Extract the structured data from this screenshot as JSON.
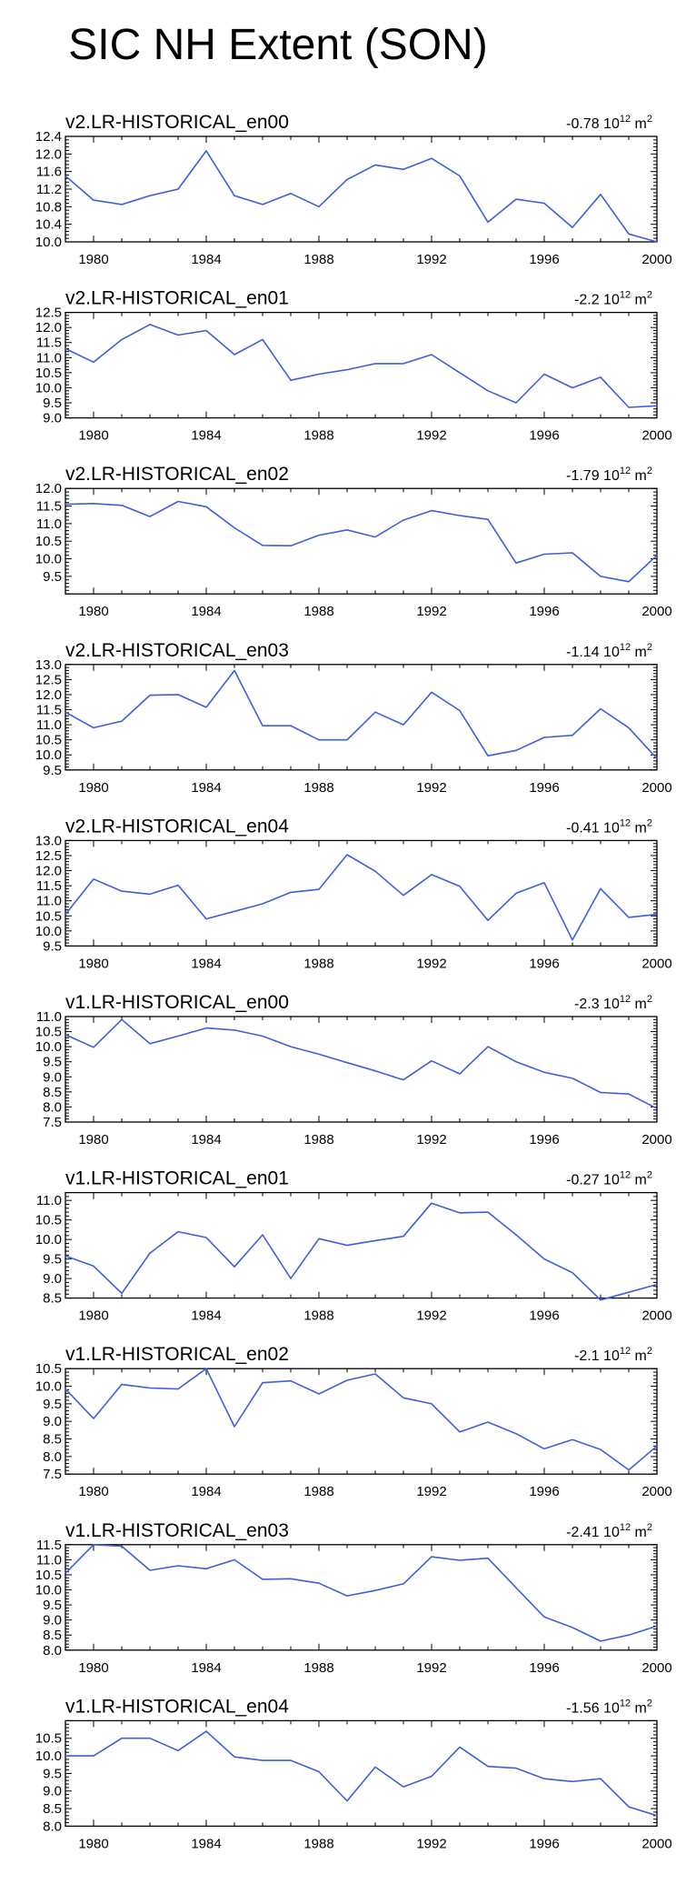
{
  "page_title": "SIC NH Extent (SON)",
  "line_color": "#3c5fdc",
  "chart_data": [
    {
      "type": "line",
      "title": "v2.LR-HISTORICAL_en00",
      "trend": {
        "value": "-0.78",
        "base": "10",
        "exp": "12",
        "unit": "m",
        "unit_exp": "2"
      },
      "x": [
        1979,
        1980,
        1981,
        1982,
        1983,
        1984,
        1985,
        1986,
        1987,
        1988,
        1989,
        1990,
        1991,
        1992,
        1993,
        1994,
        1995,
        1996,
        1997,
        1998,
        1999,
        2000
      ],
      "values": [
        11.5,
        10.95,
        10.85,
        11.05,
        11.2,
        12.07,
        11.05,
        10.85,
        11.1,
        10.8,
        11.42,
        11.75,
        11.65,
        11.9,
        11.5,
        10.45,
        10.97,
        10.88,
        10.33,
        11.08,
        10.18,
        10.0
      ],
      "ylim": [
        10.0,
        12.4
      ],
      "yticks": [
        "10.0",
        "10.4",
        "10.8",
        "11.2",
        "11.6",
        "12.0",
        "12.4"
      ],
      "xticks": [
        "1980",
        "1984",
        "1988",
        "1992",
        "1996",
        "2000"
      ]
    },
    {
      "type": "line",
      "title": "v2.LR-HISTORICAL_en01",
      "trend": {
        "value": "-2.2",
        "base": "10",
        "exp": "12",
        "unit": "m",
        "unit_exp": "2"
      },
      "x": [
        1979,
        1980,
        1981,
        1982,
        1983,
        1984,
        1985,
        1986,
        1987,
        1988,
        1989,
        1990,
        1991,
        1992,
        1993,
        1994,
        1995,
        1996,
        1997,
        1998,
        1999,
        2000
      ],
      "values": [
        11.3,
        10.85,
        11.6,
        12.1,
        11.75,
        11.9,
        11.1,
        11.6,
        10.25,
        10.45,
        10.6,
        10.8,
        10.8,
        11.1,
        10.5,
        9.9,
        9.5,
        10.45,
        10.0,
        10.35,
        9.35,
        9.4
      ],
      "ylim": [
        9.0,
        12.5
      ],
      "yticks": [
        "9.0",
        "9.5",
        "10.0",
        "10.5",
        "11.0",
        "11.5",
        "12.0",
        "12.5"
      ],
      "xticks": [
        "1980",
        "1984",
        "1988",
        "1992",
        "1996",
        "2000"
      ]
    },
    {
      "type": "line",
      "title": "v2.LR-HISTORICAL_en02",
      "trend": {
        "value": "-1.79",
        "base": "10",
        "exp": "12",
        "unit": "m",
        "unit_exp": "2"
      },
      "x": [
        1979,
        1980,
        1981,
        1982,
        1983,
        1984,
        1985,
        1986,
        1987,
        1988,
        1989,
        1990,
        1991,
        1992,
        1993,
        1994,
        1995,
        1996,
        1997,
        1998,
        1999,
        2000
      ],
      "values": [
        11.55,
        11.57,
        11.52,
        11.2,
        11.63,
        11.48,
        10.88,
        10.38,
        10.37,
        10.67,
        10.82,
        10.62,
        11.1,
        11.37,
        11.23,
        11.12,
        9.88,
        10.13,
        10.17,
        9.5,
        9.35,
        10.1
      ],
      "ylim": [
        9.0,
        12.0
      ],
      "yticks": [
        "9.5",
        "10.0",
        "10.5",
        "11.0",
        "11.5",
        "12.0"
      ],
      "xticks": [
        "1980",
        "1984",
        "1988",
        "1992",
        "1996",
        "2000"
      ]
    },
    {
      "type": "line",
      "title": "v2.LR-HISTORICAL_en03",
      "trend": {
        "value": "-1.14",
        "base": "10",
        "exp": "12",
        "unit": "m",
        "unit_exp": "2"
      },
      "x": [
        1979,
        1980,
        1981,
        1982,
        1983,
        1984,
        1985,
        1986,
        1987,
        1988,
        1989,
        1990,
        1991,
        1992,
        1993,
        1994,
        1995,
        1996,
        1997,
        1998,
        1999,
        2000
      ],
      "values": [
        11.42,
        10.9,
        11.12,
        11.98,
        12.0,
        11.58,
        12.8,
        10.97,
        10.97,
        10.5,
        10.5,
        11.42,
        11.0,
        12.08,
        11.47,
        9.97,
        10.15,
        10.58,
        10.65,
        11.53,
        10.9,
        9.88
      ],
      "ylim": [
        9.5,
        13.0
      ],
      "yticks": [
        "9.5",
        "10.0",
        "10.5",
        "11.0",
        "11.5",
        "12.0",
        "12.5",
        "13.0"
      ],
      "xticks": [
        "1980",
        "1984",
        "1988",
        "1992",
        "1996",
        "2000"
      ]
    },
    {
      "type": "line",
      "title": "v2.LR-HISTORICAL_en04",
      "trend": {
        "value": "-0.41",
        "base": "10",
        "exp": "12",
        "unit": "m",
        "unit_exp": "2"
      },
      "x": [
        1979,
        1980,
        1981,
        1982,
        1983,
        1984,
        1985,
        1986,
        1987,
        1988,
        1989,
        1990,
        1991,
        1992,
        1993,
        1994,
        1995,
        1996,
        1997,
        1998,
        1999,
        2000
      ],
      "values": [
        10.55,
        11.72,
        11.32,
        11.22,
        11.52,
        10.4,
        10.65,
        10.9,
        11.28,
        11.38,
        12.53,
        11.98,
        11.18,
        11.87,
        11.48,
        10.35,
        11.25,
        11.6,
        9.7,
        11.4,
        10.45,
        10.55
      ],
      "ylim": [
        9.5,
        13.0
      ],
      "yticks": [
        "9.5",
        "10.0",
        "10.5",
        "11.0",
        "11.5",
        "12.0",
        "12.5",
        "13.0"
      ],
      "xticks": [
        "1980",
        "1984",
        "1988",
        "1992",
        "1996",
        "2000"
      ]
    },
    {
      "type": "line",
      "title": "v1.LR-HISTORICAL_en00",
      "trend": {
        "value": "-2.3",
        "base": "10",
        "exp": "12",
        "unit": "m",
        "unit_exp": "2"
      },
      "x": [
        1979,
        1980,
        1981,
        1982,
        1983,
        1984,
        1985,
        1986,
        1987,
        1988,
        1989,
        1990,
        1991,
        1992,
        1993,
        1994,
        1995,
        1996,
        1997,
        1998,
        1999,
        2000
      ],
      "values": [
        10.4,
        9.98,
        10.9,
        10.1,
        10.35,
        10.62,
        10.55,
        10.35,
        10.0,
        9.75,
        9.47,
        9.2,
        8.9,
        9.53,
        9.1,
        10.0,
        9.5,
        9.15,
        8.95,
        8.48,
        8.43,
        7.95
      ],
      "ylim": [
        7.5,
        11.0
      ],
      "yticks": [
        "7.5",
        "8.0",
        "8.5",
        "9.0",
        "9.5",
        "10.0",
        "10.5",
        "11.0"
      ],
      "xticks": [
        "1980",
        "1984",
        "1988",
        "1992",
        "1996",
        "2000"
      ]
    },
    {
      "type": "line",
      "title": "v1.LR-HISTORICAL_en01",
      "trend": {
        "value": "-0.27",
        "base": "10",
        "exp": "12",
        "unit": "m",
        "unit_exp": "2"
      },
      "x": [
        1979,
        1980,
        1981,
        1982,
        1983,
        1984,
        1985,
        1986,
        1987,
        1988,
        1989,
        1990,
        1991,
        1992,
        1993,
        1994,
        1995,
        1996,
        1997,
        1998,
        1999,
        2000
      ],
      "values": [
        9.58,
        9.32,
        8.62,
        9.65,
        10.2,
        10.05,
        9.3,
        10.12,
        9.0,
        10.02,
        9.85,
        9.97,
        10.08,
        10.93,
        10.68,
        10.7,
        10.12,
        9.5,
        9.15,
        8.45,
        8.65,
        8.85
      ],
      "ylim": [
        8.5,
        11.2
      ],
      "yticks": [
        "8.5",
        "9.0",
        "9.5",
        "10.0",
        "10.5",
        "11.0"
      ],
      "xticks": [
        "1980",
        "1984",
        "1988",
        "1992",
        "1996",
        "2000"
      ]
    },
    {
      "type": "line",
      "title": "v1.LR-HISTORICAL_en02",
      "trend": {
        "value": "-2.1",
        "base": "10",
        "exp": "12",
        "unit": "m",
        "unit_exp": "2"
      },
      "x": [
        1979,
        1980,
        1981,
        1982,
        1983,
        1984,
        1985,
        1986,
        1987,
        1988,
        1989,
        1990,
        1991,
        1992,
        1993,
        1994,
        1995,
        1996,
        1997,
        1998,
        1999,
        2000
      ],
      "values": [
        9.92,
        9.08,
        10.05,
        9.95,
        9.92,
        10.5,
        8.85,
        10.1,
        10.15,
        9.78,
        10.17,
        10.35,
        9.67,
        9.5,
        8.7,
        8.98,
        8.65,
        8.22,
        8.48,
        8.2,
        7.62,
        8.3
      ],
      "ylim": [
        7.5,
        10.5
      ],
      "yticks": [
        "7.5",
        "8.0",
        "8.5",
        "9.0",
        "9.5",
        "10.0",
        "10.5"
      ],
      "xticks": [
        "1980",
        "1984",
        "1988",
        "1992",
        "1996",
        "2000"
      ]
    },
    {
      "type": "line",
      "title": "v1.LR-HISTORICAL_en03",
      "trend": {
        "value": "-2.41",
        "base": "10",
        "exp": "12",
        "unit": "m",
        "unit_exp": "2"
      },
      "x": [
        1979,
        1980,
        1981,
        1982,
        1983,
        1984,
        1985,
        1986,
        1987,
        1988,
        1989,
        1990,
        1991,
        1992,
        1993,
        1994,
        1995,
        1996,
        1997,
        1998,
        1999,
        2000
      ],
      "values": [
        10.55,
        11.5,
        11.45,
        10.65,
        10.8,
        10.7,
        11.0,
        10.35,
        10.37,
        10.22,
        9.8,
        9.98,
        10.2,
        11.1,
        10.98,
        11.05,
        10.07,
        9.1,
        8.75,
        8.3,
        8.5,
        8.8
      ],
      "ylim": [
        8.0,
        11.5
      ],
      "yticks": [
        "8.0",
        "8.5",
        "9.0",
        "9.5",
        "10.0",
        "10.5",
        "11.0",
        "11.5"
      ],
      "xticks": [
        "1980",
        "1984",
        "1988",
        "1992",
        "1996",
        "2000"
      ]
    },
    {
      "type": "line",
      "title": "v1.LR-HISTORICAL_en04",
      "trend": {
        "value": "-1.56",
        "base": "10",
        "exp": "12",
        "unit": "m",
        "unit_exp": "2"
      },
      "x": [
        1979,
        1980,
        1981,
        1982,
        1983,
        1984,
        1985,
        1986,
        1987,
        1988,
        1989,
        1990,
        1991,
        1992,
        1993,
        1994,
        1995,
        1996,
        1997,
        1998,
        1999,
        2000
      ],
      "values": [
        10.0,
        10.0,
        10.5,
        10.5,
        10.15,
        10.7,
        9.97,
        9.87,
        9.87,
        9.55,
        8.72,
        9.68,
        9.12,
        9.42,
        10.25,
        9.7,
        9.65,
        9.35,
        9.27,
        9.35,
        8.55,
        8.3
      ],
      "ylim": [
        8.0,
        11.0
      ],
      "yticks": [
        "8.0",
        "8.5",
        "9.0",
        "9.5",
        "10.0",
        "10.5"
      ],
      "xticks": [
        "1980",
        "1984",
        "1988",
        "1992",
        "1996",
        "2000"
      ]
    }
  ]
}
